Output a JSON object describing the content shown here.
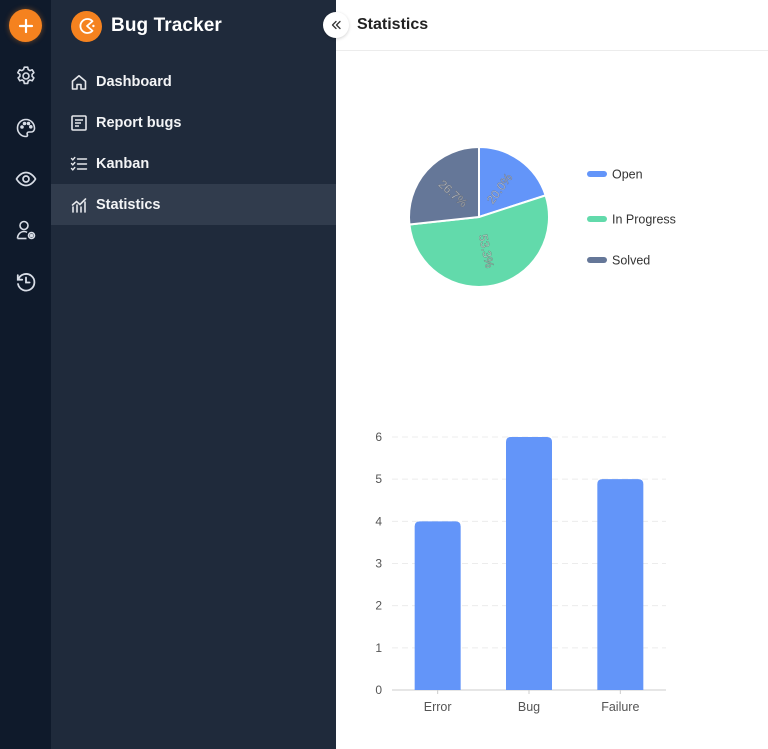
{
  "rail": {
    "add_button": {
      "icon": "plus-icon",
      "color": "#f5821f"
    },
    "items": [
      {
        "name": "settings",
        "icon": "gear-icon"
      },
      {
        "name": "theme",
        "icon": "palette-icon"
      },
      {
        "name": "view",
        "icon": "eye-icon"
      },
      {
        "name": "user-settings",
        "icon": "user-gear-icon"
      },
      {
        "name": "history",
        "icon": "history-icon"
      }
    ]
  },
  "sidebar": {
    "brand": {
      "title": "Bug Tracker",
      "logo_color": "#f5821f"
    },
    "items": [
      {
        "label": "Dashboard",
        "icon": "home-icon",
        "active": false
      },
      {
        "label": "Report bugs",
        "icon": "document-icon",
        "active": false
      },
      {
        "label": "Kanban",
        "icon": "checklist-icon",
        "active": false
      },
      {
        "label": "Statistics",
        "icon": "chart-icon",
        "active": true
      }
    ]
  },
  "header": {
    "title": "Statistics",
    "collapse_icon": "double-chevron-left-icon"
  },
  "chart_data": [
    {
      "type": "pie",
      "title": "",
      "categories": [
        "Open",
        "In Progress",
        "Solved"
      ],
      "values": [
        20.0,
        53.3,
        26.7
      ],
      "labels": [
        "20.0%",
        "53.3%",
        "26.7%"
      ],
      "colors": [
        "#6395f9",
        "#62daab",
        "#657798"
      ],
      "legend_position": "right"
    },
    {
      "type": "bar",
      "title": "",
      "categories": [
        "Error",
        "Bug",
        "Failure"
      ],
      "values": [
        4,
        6,
        5
      ],
      "xlabel": "",
      "ylabel": "",
      "ylim": [
        0,
        6
      ],
      "yticks": [
        "0",
        "1",
        "2",
        "3",
        "4",
        "5",
        "6"
      ],
      "grid": true,
      "color": "#6395f9"
    }
  ]
}
